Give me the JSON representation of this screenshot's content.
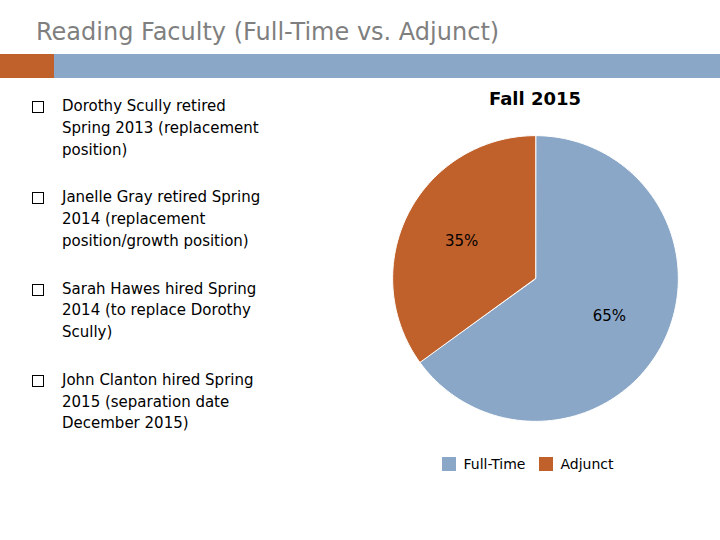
{
  "chart_data": {
    "type": "pie",
    "title": "Reading Faculty (Full-Time vs. Adjunct)",
    "subtitle": "Fall 2015",
    "categories": [
      "Full-Time",
      "Adjunct"
    ],
    "values": [
      65,
      35
    ],
    "value_labels": [
      "65%",
      "35%"
    ],
    "colors": [
      "#8BA7C7",
      "#C0612B"
    ],
    "data_labels": true,
    "legend": "bottom",
    "annotations": [
      "Dorothy Scully retired\nSpring 2013 (replacement\nposition)",
      "Janelle Gray retired Spring\n2014 (replacement\nposition/growth position)",
      "Sarah Hawes hired Spring\n2014 (to replace Dorothy\nScully)",
      "John Clanton hired Spring\n2015 (separation date\nDecember 2015)"
    ]
  }
}
